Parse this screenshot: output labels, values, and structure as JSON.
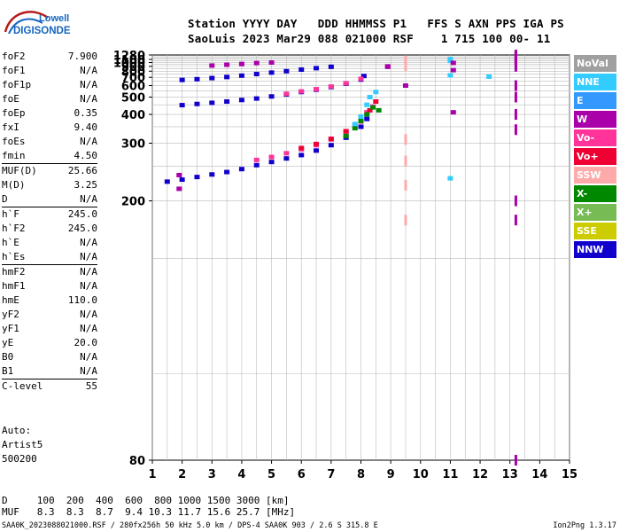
{
  "logo": {
    "line1": "Lowell",
    "line2": "DIGISONDE"
  },
  "header": {
    "labels": "Station YYYY DAY   DDD HHMMSS P1   FFS S AXN PPS IGA PS",
    "values": "SaoLuis 2023 Mar29 088 021000 RSF    1 715 100 00- 11"
  },
  "params": [
    {
      "name": "foF2",
      "value": "7.900"
    },
    {
      "name": "foF1",
      "value": "N/A"
    },
    {
      "name": "foF1p",
      "value": "N/A"
    },
    {
      "name": "foE",
      "value": "N/A"
    },
    {
      "name": "foEp",
      "value": "0.35"
    },
    {
      "name": "fxI",
      "value": "9.40"
    },
    {
      "name": "foEs",
      "value": "N/A"
    },
    {
      "name": "fmin",
      "value": "4.50"
    },
    {
      "name": "MUF(D)",
      "value": "25.66"
    },
    {
      "name": "M(D)",
      "value": "3.25"
    },
    {
      "name": "D",
      "value": "N/A"
    },
    {
      "name": "h`F",
      "value": "245.0"
    },
    {
      "name": "h`F2",
      "value": "245.0"
    },
    {
      "name": "h`E",
      "value": "N/A"
    },
    {
      "name": "h`Es",
      "value": "N/A"
    },
    {
      "name": "hmF2",
      "value": "N/A"
    },
    {
      "name": "hmF1",
      "value": "N/A"
    },
    {
      "name": "hmE",
      "value": "110.0"
    },
    {
      "name": "yF2",
      "value": "N/A"
    },
    {
      "name": "yF1",
      "value": "N/A"
    },
    {
      "name": "yE",
      "value": "20.0"
    },
    {
      "name": "B0",
      "value": "N/A"
    },
    {
      "name": "B1",
      "value": "N/A"
    },
    {
      "name": "C-level",
      "value": "55"
    }
  ],
  "auto": {
    "line1": "Auto:",
    "line2": "Artist5",
    "line3": "500200"
  },
  "muf_table": {
    "d_row": "D     100  200  400  600  800 1000 1500 3000 [km]",
    "muf_row": "MUF   8.3  8.3  8.7  9.4 10.3 11.7 15.6 25.7 [MHz]"
  },
  "footer": {
    "left": "SAA0K_2023088021000.RSF / 280fx256h 50 kHz 5.0 km / DPS-4 SAA0K 903 / 2.6 S 315.8 E",
    "right": "Ion2Png 1.3.17"
  },
  "legend": [
    {
      "label": "NoVal",
      "color": "#a0a0a0"
    },
    {
      "label": "NNE",
      "color": "#33ccff"
    },
    {
      "label": "E",
      "color": "#3399ff"
    },
    {
      "label": "W",
      "color": "#aa00aa"
    },
    {
      "label": "Vo-",
      "color": "#ff3399"
    },
    {
      "label": "Vo+",
      "color": "#ee0033"
    },
    {
      "label": "SSW",
      "color": "#ffaaaa"
    },
    {
      "label": "X-",
      "color": "#008800"
    },
    {
      "label": "X+",
      "color": "#77bb55"
    },
    {
      "label": "SSE",
      "color": "#cccc00"
    },
    {
      "label": "NNW",
      "color": "#1100cc"
    }
  ],
  "chart_data": {
    "type": "scatter",
    "title": "",
    "xlabel": "",
    "ylabel": "",
    "xlim": [
      1,
      15
    ],
    "ylim": [
      80,
      1280
    ],
    "x_ticks": [
      1,
      2,
      3,
      4,
      5,
      6,
      7,
      8,
      9,
      10,
      11,
      12,
      13,
      14,
      15
    ],
    "y_ticks": [
      80,
      200,
      300,
      400,
      500,
      600,
      700,
      800,
      900,
      1000,
      1100,
      1280
    ],
    "y_scale": "reciprocal",
    "grid": true,
    "series": [
      {
        "color": "#1100cc",
        "points": [
          [
            1.5,
            225
          ],
          [
            2.0,
            228
          ],
          [
            2.5,
            232
          ],
          [
            3.0,
            236
          ],
          [
            3.5,
            240
          ],
          [
            4.0,
            245
          ],
          [
            4.5,
            252
          ],
          [
            5.0,
            258
          ],
          [
            5.5,
            265
          ],
          [
            6.0,
            272
          ],
          [
            6.5,
            282
          ],
          [
            7.0,
            295
          ],
          [
            7.5,
            315
          ],
          [
            8.0,
            350
          ],
          [
            8.2,
            380
          ]
        ]
      },
      {
        "color": "#ff3399",
        "points": [
          [
            4.5,
            262
          ],
          [
            5.0,
            268
          ],
          [
            5.5,
            276
          ],
          [
            6.0,
            285
          ],
          [
            6.5,
            295
          ],
          [
            7.0,
            310
          ],
          [
            7.5,
            330
          ],
          [
            7.8,
            355
          ],
          [
            8.0,
            380
          ],
          [
            8.2,
            410
          ],
          [
            8.4,
            440
          ]
        ]
      },
      {
        "color": "#ee0033",
        "points": [
          [
            6.0,
            288
          ],
          [
            6.5,
            298
          ],
          [
            7.0,
            312
          ],
          [
            7.5,
            335
          ],
          [
            8.0,
            370
          ],
          [
            8.3,
            420
          ],
          [
            8.5,
            470
          ]
        ]
      },
      {
        "color": "#008800",
        "points": [
          [
            7.5,
            320
          ],
          [
            7.8,
            345
          ],
          [
            8.0,
            372
          ],
          [
            8.2,
            400
          ],
          [
            8.4,
            435
          ],
          [
            8.6,
            420
          ]
        ]
      },
      {
        "color": "#33ccff",
        "points": [
          [
            7.8,
            360
          ],
          [
            8.0,
            390
          ],
          [
            8.2,
            450
          ],
          [
            8.3,
            500
          ],
          [
            8.5,
            540
          ]
        ]
      },
      {
        "color": "#1100cc",
        "points": [
          [
            2.0,
            448
          ],
          [
            2.5,
            455
          ],
          [
            3.0,
            462
          ],
          [
            3.5,
            470
          ],
          [
            4.0,
            480
          ],
          [
            4.5,
            490
          ],
          [
            5.0,
            505
          ],
          [
            5.5,
            520
          ],
          [
            6.0,
            540
          ],
          [
            6.5,
            560
          ],
          [
            7.0,
            585
          ],
          [
            7.5,
            620
          ],
          [
            8.0,
            670
          ],
          [
            8.1,
            720
          ]
        ]
      },
      {
        "color": "#ff3399",
        "points": [
          [
            5.5,
            525
          ],
          [
            6.0,
            545
          ],
          [
            6.5,
            565
          ],
          [
            7.0,
            590
          ],
          [
            7.5,
            625
          ],
          [
            8.0,
            680
          ]
        ]
      },
      {
        "color": "#1100cc",
        "points": [
          [
            2.0,
            665
          ],
          [
            2.5,
            675
          ],
          [
            3.0,
            690
          ],
          [
            3.5,
            705
          ],
          [
            4.0,
            725
          ],
          [
            4.5,
            750
          ],
          [
            5.0,
            775
          ],
          [
            5.5,
            800
          ],
          [
            6.0,
            830
          ],
          [
            6.5,
            860
          ],
          [
            7.0,
            890
          ]
        ]
      },
      {
        "color": "#aa00aa",
        "points": [
          [
            3.0,
            920
          ],
          [
            3.5,
            940
          ],
          [
            4.0,
            960
          ],
          [
            4.5,
            985
          ],
          [
            5.0,
            1000
          ]
        ]
      },
      {
        "color": "#ffaaaa",
        "points": [
          [
            9.5,
            180
          ],
          [
            9.5,
            220
          ],
          [
            9.5,
            260
          ],
          [
            9.5,
            310
          ],
          [
            9.5,
            920
          ],
          [
            9.5,
            960
          ],
          [
            9.5,
            1000
          ],
          [
            9.5,
            1050
          ]
        ]
      },
      {
        "color": "#aa00aa",
        "points": [
          [
            13.2,
            80
          ],
          [
            13.2,
            180
          ],
          [
            13.2,
            200
          ],
          [
            13.2,
            340
          ],
          [
            13.2,
            400
          ],
          [
            13.2,
            500
          ],
          [
            13.2,
            600
          ],
          [
            13.2,
            900
          ],
          [
            13.2,
            950
          ],
          [
            13.2,
            1080
          ],
          [
            13.2,
            1150
          ],
          [
            13.2,
            1200
          ],
          [
            13.2,
            1250
          ],
          [
            13.2,
            1280
          ]
        ]
      },
      {
        "color": "#33ccff",
        "points": [
          [
            12.3,
            710
          ],
          [
            11.0,
            730
          ],
          [
            11.0,
            1110
          ],
          [
            11.0,
            1050
          ],
          [
            11.0,
            230
          ]
        ]
      },
      {
        "color": "#aa00aa",
        "points": [
          [
            8.9,
            900
          ],
          [
            8.9,
            890
          ],
          [
            11.1,
            820
          ],
          [
            11.1,
            990
          ],
          [
            11.1,
            410
          ],
          [
            9.5,
            600
          ],
          [
            1.9,
            235
          ],
          [
            1.9,
            215
          ]
        ]
      }
    ]
  }
}
